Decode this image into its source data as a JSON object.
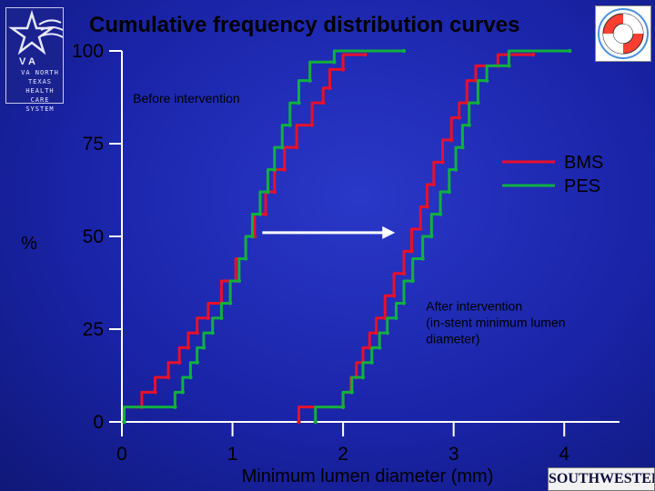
{
  "logos": {
    "va_text": "VA NORTH TEXAS HEALTH CARE SYSTEM",
    "southwestern_text": "SOUTHWESTERN"
  },
  "colors": {
    "background": "#1a24a8",
    "bms": "#e8102a",
    "pes": "#10b040",
    "axis": "#ffffff",
    "text": "#000000"
  },
  "chart_data": {
    "type": "line",
    "title": "Cumulative frequency distribution curves",
    "xlabel": "Minimum lumen diameter (mm)",
    "ylabel": "%",
    "xlim": [
      0,
      4.5
    ],
    "ylim": [
      0,
      100
    ],
    "x_ticks": [
      0,
      1,
      2,
      3,
      4
    ],
    "y_ticks": [
      0,
      25,
      50,
      75,
      100
    ],
    "grid": false,
    "legend_position": "right",
    "annotations": [
      {
        "text": "Before intervention",
        "x": 0.1,
        "y": 86
      },
      {
        "lines": [
          "After intervention",
          "(in-stent minimum lumen",
          "diameter)"
        ],
        "x": 2.75,
        "y": 30
      },
      {
        "type": "arrow",
        "from": [
          1.27,
          51
        ],
        "to": [
          2.47,
          51
        ]
      }
    ],
    "series": [
      {
        "name": "BMS",
        "phase": "Before intervention",
        "x": [
          0.02,
          0.18,
          0.3,
          0.42,
          0.52,
          0.6,
          0.68,
          0.78,
          0.9,
          1.03,
          1.12,
          1.2,
          1.3,
          1.38,
          1.47,
          1.58,
          1.72,
          1.82,
          1.88,
          2.0,
          2.2
        ],
        "y": [
          0,
          4,
          8,
          12,
          16,
          20,
          24,
          28,
          32,
          38,
          44,
          50,
          56,
          62,
          68,
          74,
          80,
          86,
          90,
          95,
          99
        ]
      },
      {
        "name": "PES",
        "phase": "Before intervention",
        "x": [
          0.02,
          0.48,
          0.55,
          0.62,
          0.68,
          0.74,
          0.82,
          0.9,
          0.98,
          1.06,
          1.12,
          1.18,
          1.25,
          1.32,
          1.38,
          1.45,
          1.52,
          1.6,
          1.7,
          1.92,
          2.55
        ],
        "y": [
          0,
          4,
          8,
          12,
          16,
          20,
          24,
          28,
          32,
          38,
          44,
          50,
          56,
          62,
          68,
          74,
          80,
          86,
          92,
          97,
          100
        ]
      },
      {
        "name": "BMS",
        "phase": "After intervention",
        "x": [
          1.6,
          2.0,
          2.07,
          2.12,
          2.18,
          2.24,
          2.3,
          2.38,
          2.46,
          2.55,
          2.62,
          2.7,
          2.76,
          2.82,
          2.9,
          2.98,
          3.05,
          3.12,
          3.2,
          3.4,
          3.72
        ],
        "y": [
          0,
          4,
          8,
          12,
          16,
          20,
          24,
          28,
          34,
          40,
          46,
          52,
          58,
          64,
          70,
          76,
          82,
          86,
          92,
          96,
          99
        ]
      },
      {
        "name": "PES",
        "phase": "After intervention",
        "x": [
          1.75,
          2.0,
          2.08,
          2.18,
          2.26,
          2.33,
          2.4,
          2.48,
          2.55,
          2.63,
          2.72,
          2.8,
          2.88,
          2.96,
          3.02,
          3.08,
          3.14,
          3.22,
          3.3,
          3.5,
          4.05
        ],
        "y": [
          0,
          4,
          8,
          12,
          16,
          20,
          24,
          28,
          32,
          38,
          44,
          50,
          56,
          62,
          68,
          74,
          80,
          86,
          92,
          96,
          100
        ]
      }
    ]
  }
}
